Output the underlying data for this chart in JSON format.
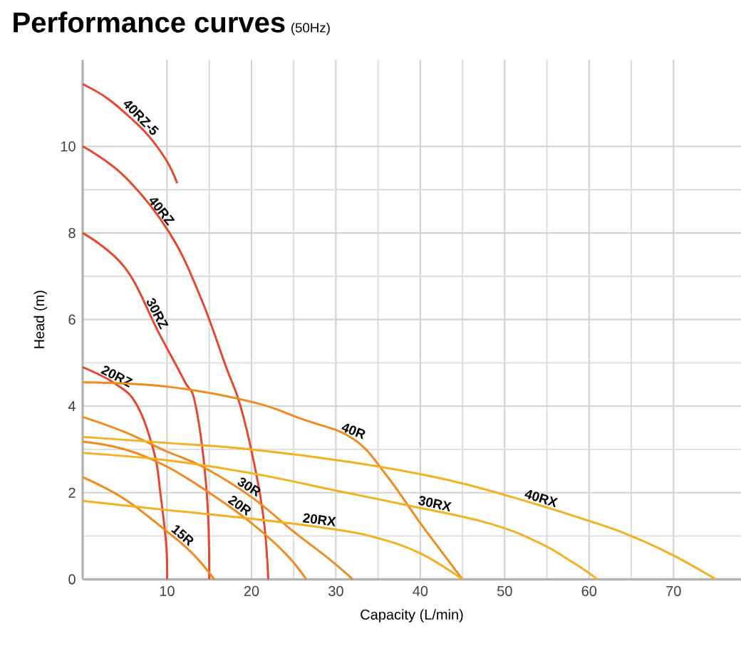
{
  "chart_data": {
    "type": "line",
    "title": "Performance curves",
    "subtitle": "(50Hz)",
    "xlabel": "Capacity (L/min)",
    "ylabel": "Head (m)",
    "xlim": [
      0,
      78
    ],
    "ylim": [
      0,
      12
    ],
    "xticks": [
      10,
      20,
      30,
      40,
      50,
      60,
      70
    ],
    "yticks": [
      0,
      2,
      4,
      6,
      8,
      10
    ],
    "grid": true,
    "marker": "none",
    "line_style": "solid",
    "series": [
      {
        "name": "40RZ-5",
        "color": "#e8452c",
        "x": [
          0,
          3,
          6,
          8,
          10,
          11.2
        ],
        "values": [
          11.44,
          11.1,
          10.6,
          10.2,
          9.65,
          9.15
        ]
      },
      {
        "name": "40RZ",
        "color": "#e8452c",
        "x": [
          0,
          5,
          10.3,
          14,
          17,
          18.7,
          20.5,
          21.5,
          22
        ],
        "values": [
          10,
          9.3,
          8,
          6.5,
          4.9,
          4,
          2.5,
          1.3,
          0
        ]
      },
      {
        "name": "30RZ",
        "color": "#e8452c",
        "x": [
          0,
          5,
          9,
          12,
          13.4,
          14.7,
          15
        ],
        "values": [
          8,
          7.2,
          5.7,
          4.6,
          4,
          2,
          0
        ]
      },
      {
        "name": "20RZ",
        "color": "#e8452c",
        "x": [
          0,
          4,
          6.5,
          8.5,
          9.2,
          9.9,
          10
        ],
        "values": [
          4.9,
          4.5,
          4,
          2.9,
          2,
          0.8,
          0
        ]
      },
      {
        "name": "40R",
        "color": "#f08a1c",
        "x": [
          0,
          10,
          20,
          26,
          32,
          36,
          40,
          45
        ],
        "values": [
          4.55,
          4.45,
          4.1,
          3.7,
          3.25,
          2.4,
          1.3,
          0
        ]
      },
      {
        "name": "30R",
        "color": "#f08a1c",
        "x": [
          0,
          5,
          10,
          14.2,
          20,
          25,
          29,
          32
        ],
        "values": [
          3.75,
          3.4,
          2.95,
          2.6,
          1.9,
          1.1,
          0.5,
          0
        ]
      },
      {
        "name": "20R",
        "color": "#f08a1c",
        "x": [
          0,
          5,
          10,
          15,
          20,
          24,
          26.5
        ],
        "values": [
          3.18,
          3.0,
          2.6,
          2.0,
          1.3,
          0.6,
          0
        ]
      },
      {
        "name": "15R",
        "color": "#f08a1c",
        "x": [
          0,
          5,
          10,
          13,
          15.6
        ],
        "values": [
          2.36,
          1.85,
          1.1,
          0.6,
          0
        ]
      },
      {
        "name": "20RX",
        "color": "#f5b020",
        "x": [
          0,
          10,
          20,
          30,
          35,
          40,
          45
        ],
        "values": [
          1.81,
          1.6,
          1.4,
          1.15,
          0.95,
          0.6,
          0
        ]
      },
      {
        "name": "30RX",
        "color": "#f5b020",
        "x": [
          0,
          10,
          20,
          30,
          38.7,
          48,
          54,
          58,
          61
        ],
        "values": [
          2.92,
          2.75,
          2.45,
          2.05,
          1.7,
          1.3,
          0.85,
          0.4,
          0
        ]
      },
      {
        "name": "40RX",
        "color": "#f5b020",
        "x": [
          0,
          10,
          20,
          32,
          42,
          50,
          60,
          65,
          70,
          75
        ],
        "values": [
          3.29,
          3.15,
          3.0,
          2.7,
          2.35,
          1.95,
          1.35,
          1.0,
          0.55,
          0
        ]
      }
    ]
  }
}
